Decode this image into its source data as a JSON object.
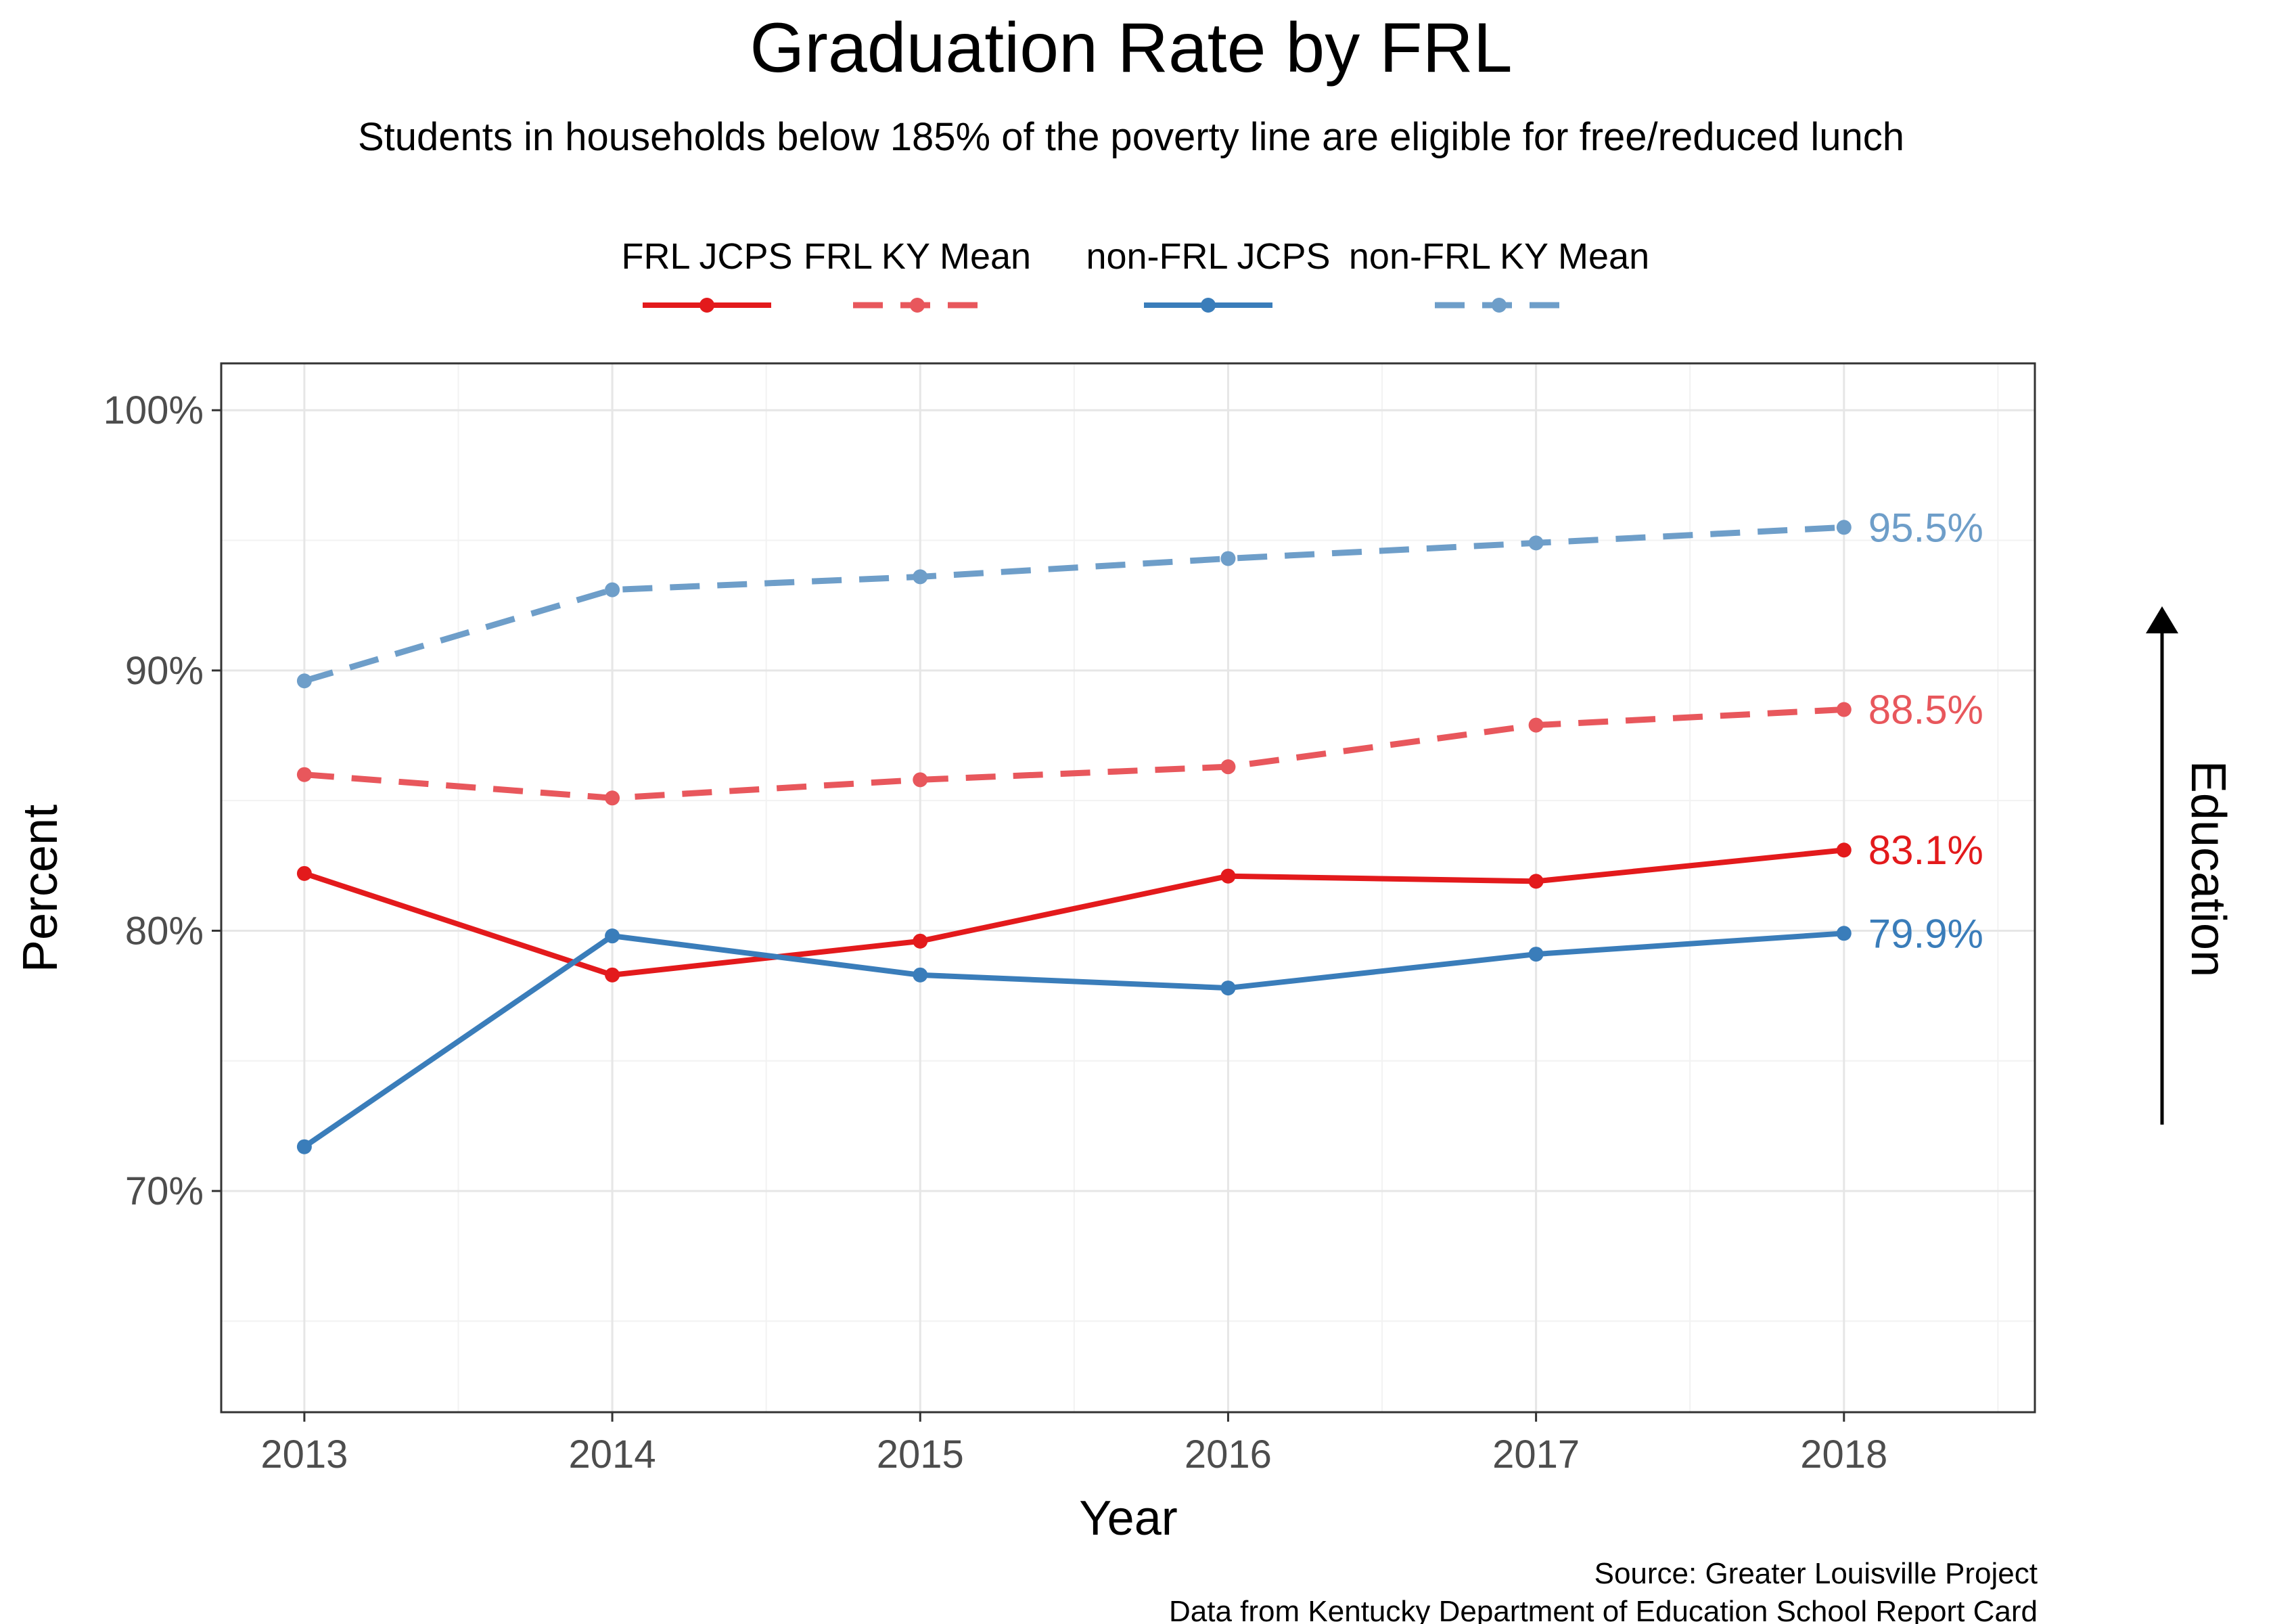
{
  "chart_data": {
    "type": "line",
    "title": "Graduation Rate by FRL",
    "subtitle": "Students in households below 185% of the poverty line are eligible for free/reduced lunch",
    "xlabel": "Year",
    "ylabel": "Percent",
    "side_label": "Education",
    "x": [
      2013,
      2014,
      2015,
      2016,
      2017,
      2018
    ],
    "xlim": [
      2012.73,
      2018.62
    ],
    "ylim": [
      61.5,
      101.8
    ],
    "y_ticks": [
      70,
      80,
      90,
      100
    ],
    "y_tick_labels": [
      "70%",
      "80%",
      "90%",
      "100%"
    ],
    "y_minor_ticks": [
      65,
      75,
      85,
      95
    ],
    "x_tick_labels": [
      "2013",
      "2014",
      "2015",
      "2016",
      "2017",
      "2018"
    ],
    "x_minor_ticks": [
      2013.5,
      2014.5,
      2015.5,
      2016.5,
      2017.5,
      2018.5
    ],
    "grid": true,
    "legend_position": "top",
    "series": [
      {
        "name": "FRL JCPS",
        "values": [
          82.2,
          78.3,
          79.6,
          82.1,
          81.9,
          83.1
        ],
        "color": "#e31a1c",
        "style": "solid",
        "end_label": "83.1%"
      },
      {
        "name": "FRL KY Mean",
        "values": [
          86.0,
          85.1,
          85.8,
          86.3,
          87.9,
          88.5
        ],
        "color": "#e8575c",
        "style": "dashed",
        "end_label": "88.5%"
      },
      {
        "name": "non-FRL JCPS",
        "values": [
          71.7,
          79.8,
          78.3,
          77.8,
          79.1,
          79.9
        ],
        "color": "#3a7dba",
        "style": "solid",
        "end_label": "79.9%"
      },
      {
        "name": "non-FRL KY Mean",
        "values": [
          89.6,
          93.1,
          93.6,
          94.3,
          94.9,
          95.5
        ],
        "color": "#6e9ec9",
        "style": "dashed",
        "end_label": "95.5%"
      }
    ]
  },
  "caption": {
    "line1": "Source: Greater Louisville Project",
    "line2": "Data from Kentucky Department of Education School Report Card"
  }
}
